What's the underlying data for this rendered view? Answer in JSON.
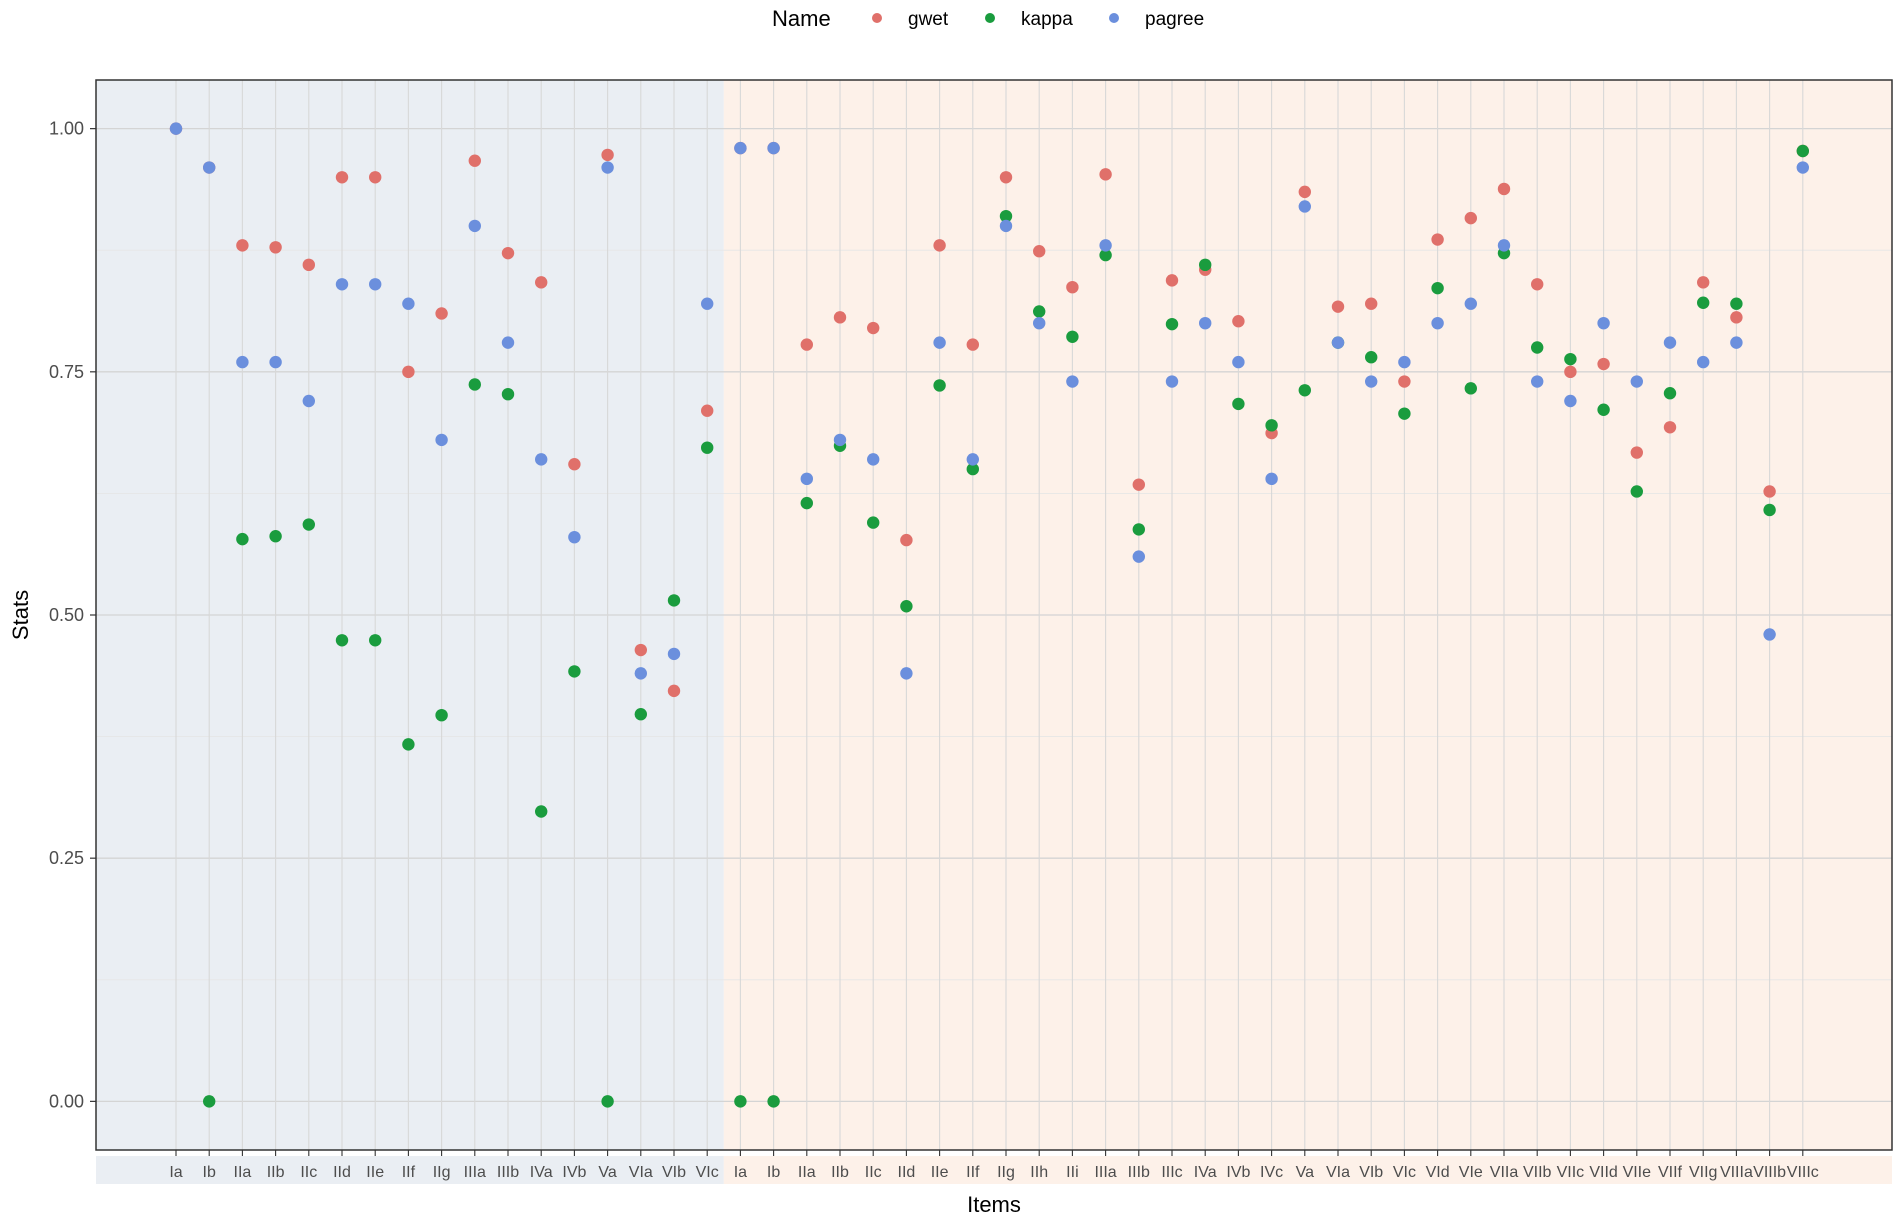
{
  "chart_data": {
    "type": "scatter",
    "xlabel": "Items",
    "ylabel": "Stats",
    "ylim": [
      -0.05,
      1.05
    ],
    "yticks": [
      "0.00",
      "0.25",
      "0.50",
      "0.75",
      "1.00"
    ],
    "grid": true,
    "legend": {
      "title": "Name",
      "position": "top"
    },
    "categories": [
      "Ia",
      "Ib",
      "IIa",
      "IIb",
      "IIc",
      "IId",
      "IIe",
      "IIf",
      "IIg",
      "IIIa",
      "IIIb",
      "IVa",
      "IVb",
      "Va",
      "VIa",
      "VIb",
      "VIc",
      "Ia",
      "Ib",
      "IIa",
      "IIb",
      "IIc",
      "IId",
      "IIe",
      "IIf",
      "IIg",
      "IIh",
      "IIi",
      "IIIa",
      "IIIb",
      "IIIc",
      "IVa",
      "IVb",
      "IVc",
      "Va",
      "VIa",
      "VIb",
      "VIc",
      "VId",
      "VIe",
      "VIIa",
      "VIIb",
      "VIIc",
      "VIId",
      "VIIe",
      "VIIf",
      "VIIg",
      "VIIIa",
      "VIIIb",
      "VIIIc"
    ],
    "groups": [
      {
        "from": 0,
        "to": 16,
        "color": "#eaeef3"
      },
      {
        "from": 17,
        "to": 49,
        "color": "#fdf1e9"
      }
    ],
    "series": [
      {
        "name": "gwet",
        "color": "#e0706a",
        "values": [
          1.0,
          0.96,
          0.88,
          0.878,
          0.86,
          0.95,
          0.95,
          0.75,
          0.81,
          0.967,
          0.872,
          0.842,
          0.655,
          0.973,
          0.464,
          0.422,
          0.71,
          0.98,
          0.98,
          0.778,
          0.806,
          0.795,
          0.577,
          0.88,
          0.778,
          0.95,
          0.874,
          0.837,
          0.953,
          0.634,
          0.844,
          0.855,
          0.802,
          0.687,
          0.935,
          0.817,
          0.82,
          0.74,
          0.886,
          0.908,
          0.938,
          0.84,
          0.75,
          0.758,
          0.667,
          0.693,
          0.842,
          0.806,
          0.627,
          0.977
        ]
      },
      {
        "name": "kappa",
        "color": "#1a9c3e",
        "values": [
          null,
          0.0,
          0.578,
          0.581,
          0.593,
          0.474,
          0.474,
          0.367,
          0.397,
          0.737,
          0.727,
          0.298,
          0.442,
          0.0,
          0.398,
          0.515,
          0.672,
          0.0,
          0.0,
          0.615,
          0.674,
          0.595,
          0.509,
          0.736,
          0.65,
          0.91,
          0.812,
          0.786,
          0.87,
          0.588,
          0.799,
          0.86,
          0.717,
          0.695,
          0.731,
          0.78,
          0.765,
          0.707,
          0.836,
          0.733,
          0.872,
          0.775,
          0.763,
          0.711,
          0.627,
          0.728,
          0.821,
          0.82,
          0.608,
          0.977
        ]
      },
      {
        "name": "pagree",
        "color": "#6b8fdd",
        "values": [
          1.0,
          0.96,
          0.76,
          0.76,
          0.72,
          0.84,
          0.84,
          0.82,
          0.68,
          0.9,
          0.78,
          0.66,
          0.58,
          0.96,
          0.44,
          0.46,
          0.82,
          0.98,
          0.98,
          0.64,
          0.68,
          0.66,
          0.44,
          0.78,
          0.66,
          0.9,
          0.8,
          0.74,
          0.88,
          0.56,
          0.74,
          0.8,
          0.76,
          0.64,
          0.92,
          0.78,
          0.74,
          0.76,
          0.8,
          0.82,
          0.88,
          0.74,
          0.72,
          0.8,
          0.74,
          0.78,
          0.76,
          0.78,
          0.48,
          0.96
        ]
      }
    ]
  }
}
